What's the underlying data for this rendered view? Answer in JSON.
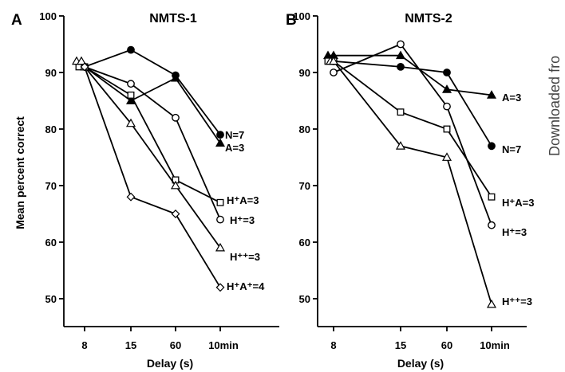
{
  "side_note": "Downloaded fro",
  "chart_data": [
    {
      "type": "line",
      "panel_letter": "A",
      "title": "NMTS-1",
      "xlabel": "Delay (s)",
      "ylabel": "Mean percent correct",
      "categories": [
        "8",
        "15",
        "60",
        "10min"
      ],
      "ylim": [
        45,
        100
      ],
      "yticks": [
        50,
        60,
        70,
        80,
        90,
        100
      ],
      "grid": false,
      "series": [
        {
          "name": "N=7",
          "marker": "circle-filled",
          "x": [
            "8",
            "15",
            "60",
            "10min"
          ],
          "values": [
            91,
            94,
            89.5,
            79
          ]
        },
        {
          "name": "A=3",
          "marker": "triangle-filled",
          "x": [
            "8",
            "15",
            "60",
            "10min"
          ],
          "values": [
            91,
            85,
            89,
            77.5
          ]
        },
        {
          "name": "H⁺A=3",
          "marker": "square-open",
          "x": [
            "7.6",
            "8",
            "15",
            "60",
            "10min"
          ],
          "values": [
            91,
            91,
            86,
            71,
            67
          ]
        },
        {
          "name": "H⁺=3",
          "marker": "circle-open",
          "x": [
            "8",
            "15",
            "60",
            "10min"
          ],
          "values": [
            91,
            88,
            82,
            64
          ]
        },
        {
          "name": "H⁺⁺=3",
          "marker": "triangle-open",
          "x": [
            "7.5",
            "7.8",
            "8",
            "15",
            "60",
            "10min"
          ],
          "values": [
            92,
            92,
            91,
            81,
            70,
            59
          ]
        },
        {
          "name": "H⁺A⁺=4",
          "marker": "diamond-open",
          "x": [
            "8",
            "15",
            "60",
            "10min"
          ],
          "values": [
            91,
            68,
            65,
            52
          ]
        }
      ]
    },
    {
      "type": "line",
      "panel_letter": "B",
      "title": "NMTS-2",
      "xlabel": "Delay (s)",
      "ylabel": "",
      "categories": [
        "8",
        "15",
        "60",
        "10min"
      ],
      "ylim": [
        45,
        100
      ],
      "yticks": [
        50,
        60,
        70,
        80,
        90,
        100
      ],
      "grid": false,
      "series": [
        {
          "name": "A=3",
          "marker": "triangle-filled",
          "x": [
            "7.5",
            "8",
            "15",
            "60",
            "10min"
          ],
          "values": [
            93,
            93,
            93,
            87,
            86
          ]
        },
        {
          "name": "N=7",
          "marker": "circle-filled",
          "x": [
            "8",
            "15",
            "60",
            "10min"
          ],
          "values": [
            92,
            91,
            90,
            77
          ]
        },
        {
          "name": "H⁺A=3",
          "marker": "square-open",
          "x": [
            "7.5",
            "8",
            "15",
            "60",
            "10min"
          ],
          "values": [
            92,
            92,
            83,
            80,
            68
          ]
        },
        {
          "name": "H⁺=3",
          "marker": "circle-open",
          "x": [
            "8",
            "15",
            "60",
            "10min"
          ],
          "values": [
            90,
            95,
            84,
            63
          ]
        },
        {
          "name": "H⁺⁺=3",
          "marker": "triangle-open",
          "x": [
            "7.8",
            "8",
            "15",
            "60",
            "10min"
          ],
          "values": [
            92,
            92,
            77,
            75,
            49
          ]
        }
      ]
    }
  ]
}
